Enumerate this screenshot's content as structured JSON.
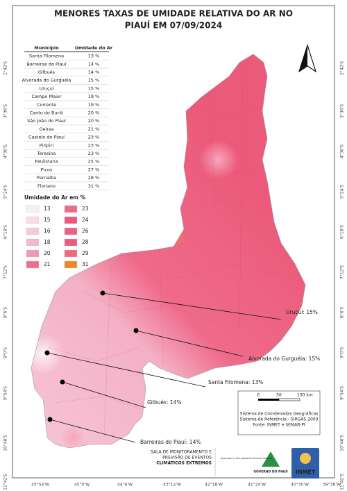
{
  "title": [
    "MENORES TAXAS DE UMIDADE RELATIVA DO AR NO",
    "PIAUÍ EM 07/09/2024"
  ],
  "table": {
    "header": [
      "Município",
      "Umidade do Ar"
    ],
    "rows": [
      [
        "Santa Filomena",
        "13 %"
      ],
      [
        "Barreiras do Piauí",
        "14 %"
      ],
      [
        "Gilbués",
        "14 %"
      ],
      [
        "Alvorada do Gurguéia",
        "15 %"
      ],
      [
        "Uruçuí",
        "15 %"
      ],
      [
        "Campo Maior",
        "19 %"
      ],
      [
        "Corrente",
        "19 %"
      ],
      [
        "Canto do Buriti",
        "20 %"
      ],
      [
        "São João do Piauí",
        "20 %"
      ],
      [
        "Oeiras",
        "21 %"
      ],
      [
        "Castelo do Piauí",
        "23 %"
      ],
      [
        "Piripiri",
        "23 %"
      ],
      [
        "Teresina",
        "23 %"
      ],
      [
        "Paulistana",
        "25 %"
      ],
      [
        "Picos",
        "27 %"
      ],
      [
        "Parnaíba",
        "28 %"
      ],
      [
        "Floriano",
        "31 %"
      ]
    ]
  },
  "legend": {
    "title": "Umidade do Ar em %",
    "items": [
      {
        "label": "13",
        "color": "#f6eef1"
      },
      {
        "label": "15",
        "color": "#f9dbe6"
      },
      {
        "label": "16",
        "color": "#f7cadb"
      },
      {
        "label": "18",
        "color": "#f4b7ce"
      },
      {
        "label": "20",
        "color": "#f199b4"
      },
      {
        "label": "21",
        "color": "#ee6e8d"
      },
      {
        "label": "23",
        "color": "#ee6b88"
      },
      {
        "label": "24",
        "color": "#ec5a7b"
      },
      {
        "label": "26",
        "color": "#ea6283"
      },
      {
        "label": "28",
        "color": "#ea5c7e"
      },
      {
        "label": "29",
        "color": "#ee6a80"
      },
      {
        "label": "31",
        "color": "#f0862c"
      }
    ]
  },
  "callouts": [
    "Uruçuí: 15%",
    "Alvorada do Gurguéia: 15%",
    "Santa Filomena: 13%",
    "Gilbués: 14%",
    "Barreiras do Piauí: 14%"
  ],
  "scale": [
    "0",
    "50",
    "100 km"
  ],
  "credits": [
    "Sistema de Coordenadas Geográficas",
    "Sistema de Referência - SIRGAS 2000",
    "Fonte: INMET e SEMAR-PI"
  ],
  "latitudes": [
    "2°42'S",
    "3°36'S",
    "4°30'S",
    "5°24'S",
    "6°18'S",
    "7°12'S",
    "8°6'S",
    "9°0'S",
    "9°54'S",
    "10°48'S",
    "11°42'S"
  ],
  "longitudes": [
    "45°54'W",
    "45°0'W",
    "44°6'W",
    "43°12'W",
    "42°18'W",
    "41°24'W",
    "40°30'W",
    "39°36'W"
  ],
  "footer": {
    "sala": [
      "SALA DE MONITORAMENTO E",
      "PREVISÃO DE EVENTOS",
      "CLIMÁTICOS EXTREMOS"
    ],
    "secretaria": "SECRETARIA DO MEIO AMBIENTE E RECURSOS HÍDRICOS",
    "governo": "GOVERNO DO PIAUÍ",
    "inmet": "INMET"
  }
}
